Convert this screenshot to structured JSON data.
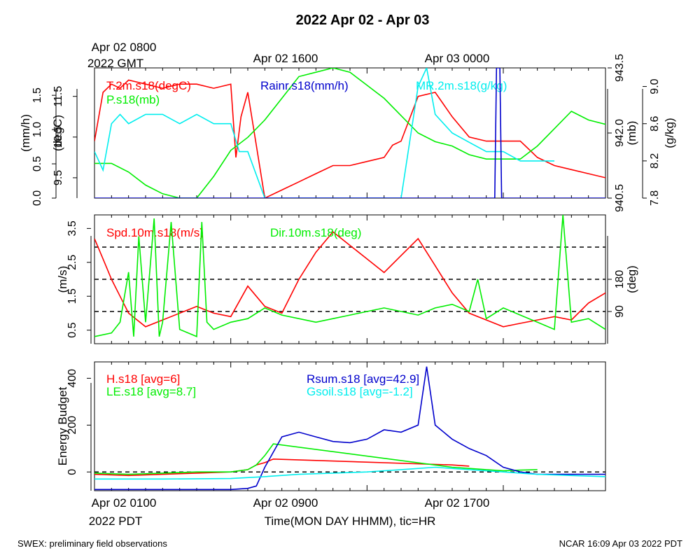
{
  "title": "2022 Apr 02 - Apr 03",
  "top_time_labels": [
    {
      "line1": "Apr 02 0800",
      "line2": "2022 GMT"
    },
    {
      "line1": "Apr 02 1600",
      "line2": ""
    },
    {
      "line1": "Apr 03 0000",
      "line2": ""
    }
  ],
  "bottom_time_labels": [
    {
      "line1": "Apr 02 0100",
      "line2": "2022 PDT"
    },
    {
      "line1": "Apr 02 0900",
      "line2": ""
    },
    {
      "line1": "Apr 02 1700",
      "line2": ""
    }
  ],
  "xlabel": "Time(MON DAY HHMM), tic=HR",
  "footer_left": "SWEX: preliminary field observations",
  "footer_right": "NCAR 16:09 Apr 03 2022 PDT",
  "chart_data": [
    {
      "type": "line",
      "x_unit": "hours since Apr 02 0100 PDT",
      "xlim": [
        0,
        30
      ],
      "axes": [
        {
          "label": "(mm/h)",
          "side": "left",
          "ylim": [
            0,
            1.9
          ],
          "ticks": [
            "0.0",
            "0.5",
            "1.0",
            "1.5"
          ],
          "tick_values": [
            0,
            0.5,
            1.0,
            1.5
          ]
        },
        {
          "label": "(degC)",
          "side": "left",
          "ylim": [
            9.0,
            12.2
          ],
          "ticks": [
            "9.5",
            "10.5",
            "11.5"
          ],
          "tick_values": [
            9.5,
            10.5,
            11.5
          ]
        },
        {
          "label": "(mb)",
          "side": "right",
          "ylim": [
            940.5,
            943.5
          ],
          "ticks": [
            "940.5",
            "942.0",
            "943.5"
          ],
          "tick_values": [
            940.5,
            942.0,
            943.5
          ]
        },
        {
          "label": "(g/kg)",
          "side": "right",
          "ylim": [
            7.8,
            9.2
          ],
          "ticks": [
            "7.8",
            "8.2",
            "8.6",
            "9.0"
          ],
          "tick_values": [
            7.8,
            8.2,
            8.6,
            9.0
          ]
        }
      ],
      "series": [
        {
          "name": "T.2m.s18(degC)",
          "color": "#ff0000",
          "axis": 1,
          "x": [
            0,
            0.5,
            1,
            1.5,
            2,
            3,
            4,
            5,
            6,
            7,
            8,
            8.3,
            8.6,
            9,
            10,
            11,
            12,
            13,
            14,
            15,
            16,
            17,
            17.5,
            18,
            19,
            20,
            21,
            22,
            23,
            24,
            25,
            26,
            27,
            28,
            29,
            30
          ],
          "y": [
            10.4,
            11.6,
            11.8,
            11.7,
            11.9,
            11.8,
            11.7,
            11.8,
            11.8,
            11.7,
            11.8,
            10.0,
            11.0,
            11.6,
            9.0,
            9.2,
            9.4,
            9.6,
            9.8,
            9.8,
            9.9,
            10.0,
            10.3,
            10.4,
            11.5,
            11.6,
            11.0,
            10.5,
            10.4,
            10.4,
            10.4,
            10.0,
            9.8,
            9.7,
            9.6,
            9.5
          ]
        },
        {
          "name": "P.s18(mb)",
          "color": "#00ee00",
          "axis": 2,
          "x": [
            0,
            1,
            2,
            3,
            4,
            5,
            6,
            7,
            8,
            9,
            10,
            11,
            12,
            13,
            14,
            15,
            16,
            17,
            18,
            19,
            20,
            21,
            22,
            23,
            24,
            25,
            26,
            27,
            28,
            29,
            30
          ],
          "y": [
            941.3,
            941.3,
            941.1,
            940.8,
            940.6,
            940.5,
            940.5,
            941.0,
            941.6,
            941.9,
            942.3,
            942.8,
            943.3,
            943.4,
            943.5,
            943.4,
            943.1,
            942.8,
            942.4,
            942.0,
            941.8,
            941.7,
            941.5,
            941.4,
            941.4,
            941.4,
            941.7,
            942.1,
            942.5,
            942.3,
            942.2
          ]
        },
        {
          "name": "MR.2m.s18(g/kg)",
          "color": "#00eeee",
          "axis": 3,
          "x": [
            0,
            0.5,
            1,
            1.5,
            2,
            3,
            4,
            5,
            6,
            7,
            8,
            8.5,
            9,
            10,
            11,
            12,
            13,
            14,
            15,
            16,
            17,
            18,
            19,
            19.5,
            20,
            21,
            22,
            23,
            24,
            25,
            26,
            27
          ],
          "y": [
            8.3,
            8.1,
            8.6,
            8.7,
            8.6,
            8.7,
            8.7,
            8.6,
            8.7,
            8.6,
            8.6,
            8.3,
            8.3,
            7.8,
            7.8,
            7.8,
            7.8,
            7.8,
            7.8,
            7.8,
            7.8,
            7.8,
            9.0,
            9.2,
            8.7,
            8.5,
            8.4,
            8.3,
            8.3,
            8.2,
            8.2,
            8.2
          ]
        },
        {
          "name": "Rainr.s18(mm/h)",
          "color": "#0000cc",
          "axis": 0,
          "x": [
            0,
            23.5,
            23.6,
            23.8,
            23.9,
            30
          ],
          "y": [
            0,
            0,
            1.9,
            1.9,
            0,
            0
          ]
        }
      ]
    },
    {
      "type": "line",
      "x_unit": "hours since Apr 02 0100 PDT",
      "xlim": [
        0,
        30
      ],
      "axes": [
        {
          "label": "(m/s)",
          "side": "left",
          "ylim": [
            0.1,
            3.9
          ],
          "ticks": [
            "0.5",
            "1.5",
            "2.5",
            "3.5"
          ],
          "tick_values": [
            0.5,
            1.5,
            2.5,
            3.5
          ]
        },
        {
          "label": "(deg)",
          "side": "right",
          "ylim": [
            0,
            360
          ],
          "ticks": [
            "90",
            "180"
          ],
          "tick_values": [
            90,
            180
          ]
        }
      ],
      "reference_lines": [
        {
          "axis": 1,
          "y": 90
        },
        {
          "axis": 1,
          "y": 180
        },
        {
          "axis": 1,
          "y": 270
        }
      ],
      "series": [
        {
          "name": "Spd.10m.s18(m/s)",
          "color": "#ff0000",
          "axis": 0,
          "x": [
            0,
            0.5,
            1,
            1.5,
            2,
            3,
            4,
            5,
            6,
            7,
            8,
            9,
            10,
            11,
            12,
            13,
            14,
            15,
            16,
            17,
            18,
            19,
            20,
            21,
            22,
            23,
            24,
            25,
            26,
            27,
            28,
            29,
            30
          ],
          "y": [
            3.2,
            2.6,
            2.0,
            1.5,
            1.0,
            0.6,
            0.8,
            1.0,
            1.2,
            1.0,
            0.9,
            1.8,
            1.2,
            1.0,
            2.0,
            2.8,
            3.4,
            3.0,
            2.6,
            2.2,
            2.7,
            3.2,
            2.4,
            1.6,
            1.0,
            0.8,
            0.6,
            0.7,
            0.8,
            0.9,
            0.8,
            1.3,
            1.6
          ]
        },
        {
          "name": "Dir.10m.s18(deg)",
          "color": "#00ee00",
          "axis": 1,
          "x": [
            0,
            1,
            1.5,
            2,
            2.3,
            2.6,
            3,
            3.5,
            3.8,
            4,
            4.5,
            5,
            6,
            6.3,
            6.6,
            7,
            8,
            9,
            10,
            11,
            12,
            13,
            14,
            15,
            16,
            17,
            18,
            19,
            20,
            21,
            22,
            22.5,
            23,
            24,
            25,
            26,
            27,
            27.5,
            28,
            29,
            30
          ],
          "y": [
            20,
            30,
            60,
            200,
            20,
            300,
            60,
            350,
            20,
            60,
            340,
            40,
            20,
            340,
            60,
            40,
            60,
            70,
            100,
            80,
            70,
            60,
            70,
            80,
            90,
            100,
            90,
            80,
            100,
            110,
            90,
            180,
            70,
            100,
            80,
            60,
            40,
            360,
            60,
            70,
            40
          ]
        }
      ]
    },
    {
      "type": "line",
      "x_unit": "hours since Apr 02 0100 PDT",
      "xlim": [
        0,
        30
      ],
      "axes": [
        {
          "label": "Energy Budget",
          "side": "left",
          "ylim": [
            -80,
            470
          ],
          "ticks": [
            "0",
            "200",
            "400"
          ],
          "tick_values": [
            0,
            200,
            400
          ]
        }
      ],
      "reference_lines": [
        {
          "axis": 0,
          "y": 0
        }
      ],
      "series": [
        {
          "name": "H.s18 [avg=6]",
          "color": "#ff0000",
          "axis": 0,
          "x": [
            0,
            2,
            4,
            6,
            8,
            9,
            9.5,
            10,
            10.5,
            21,
            22
          ],
          "y": [
            -10,
            -15,
            -10,
            -5,
            0,
            10,
            30,
            40,
            55,
            30,
            25
          ]
        },
        {
          "name": "LE.s18 [avg=8.7]",
          "color": "#00ee00",
          "axis": 0,
          "x": [
            0,
            2,
            4,
            6,
            8,
            9,
            9.5,
            10,
            10.5,
            21,
            22,
            23,
            24,
            25,
            26
          ],
          "y": [
            -5,
            -10,
            -5,
            0,
            0,
            10,
            30,
            70,
            120,
            20,
            15,
            10,
            5,
            8,
            10
          ]
        },
        {
          "name": "Rsum.s18 [avg=42.9]",
          "color": "#0000cc",
          "axis": 0,
          "x": [
            0,
            2,
            4,
            6,
            8,
            9,
            9.5,
            10,
            11,
            12,
            13,
            14,
            15,
            16,
            17,
            18,
            19,
            19.5,
            20,
            21,
            22,
            23,
            24,
            25,
            26,
            28,
            30
          ],
          "y": [
            -75,
            -75,
            -75,
            -75,
            -75,
            -70,
            -60,
            20,
            150,
            170,
            150,
            130,
            125,
            140,
            180,
            170,
            200,
            450,
            200,
            140,
            100,
            70,
            20,
            0,
            -10,
            -10,
            -10
          ]
        },
        {
          "name": "Gsoil.s18 [avg=-1.2]",
          "color": "#00eeee",
          "axis": 0,
          "x": [
            0,
            4,
            8,
            10,
            12,
            14,
            16,
            18,
            20,
            22,
            24,
            26,
            28,
            30
          ],
          "y": [
            -30,
            -30,
            -28,
            -20,
            -10,
            -5,
            0,
            10,
            20,
            10,
            0,
            -10,
            -15,
            -20
          ]
        }
      ]
    }
  ]
}
